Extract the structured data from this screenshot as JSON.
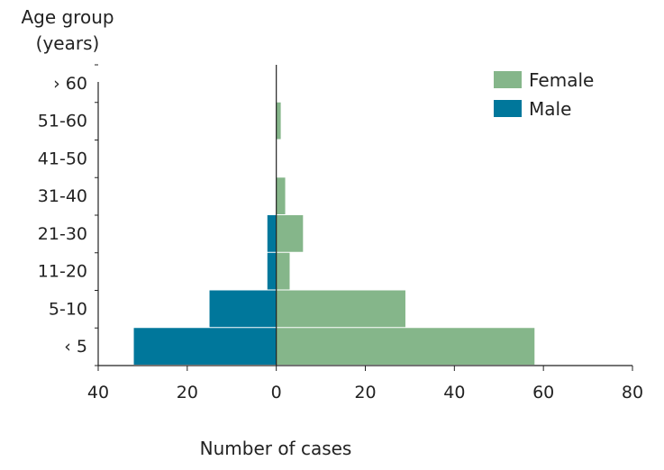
{
  "chart_data": {
    "type": "bar",
    "orientation": "horizontal",
    "ylabel_lines": [
      "Age group",
      "(years)"
    ],
    "xlabel": "Number of cases",
    "categories": [
      "‹ 5",
      "5-10",
      "11-20",
      "21-30",
      "31-40",
      "41-50",
      "51-60",
      "› 60"
    ],
    "series": [
      {
        "name": "Female",
        "values": [
          58,
          29,
          3,
          6,
          2,
          0,
          1,
          0
        ],
        "color": "#85b68a"
      },
      {
        "name": "Male",
        "values": [
          32,
          15,
          2,
          2,
          0,
          0,
          0,
          0
        ],
        "color": "#00779b"
      }
    ],
    "xlim": [
      -40,
      80
    ],
    "xticks": [
      -40,
      -20,
      0,
      20,
      40,
      60,
      80
    ],
    "xtick_labels": [
      "40",
      "20",
      "0",
      "20",
      "40",
      "60",
      "80"
    ],
    "legend_position": "top-right",
    "grid": false
  }
}
